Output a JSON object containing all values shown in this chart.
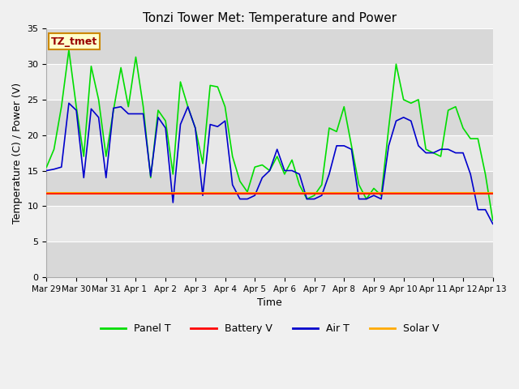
{
  "title": "Tonzi Tower Met: Temperature and Power",
  "xlabel": "Time",
  "ylabel": "Temperature (C) / Power (V)",
  "ylim": [
    0,
    35
  ],
  "yticks": [
    0,
    5,
    10,
    15,
    20,
    25,
    30,
    35
  ],
  "fig_bg_color": "#f0f0f0",
  "plot_bg_color": "#e8e8e8",
  "annotation_text": "TZ_tmet",
  "annotation_bg": "#ffffcc",
  "annotation_border": "#cc8800",
  "annotation_text_color": "#990000",
  "legend_entries": [
    "Panel T",
    "Battery V",
    "Air T",
    "Solar V"
  ],
  "legend_colors": [
    "#00dd00",
    "#ff0000",
    "#0000cc",
    "#ffaa00"
  ],
  "x_tick_labels": [
    "Mar 29",
    "Mar 30",
    "Mar 31",
    "Apr 1",
    "Apr 2",
    "Apr 3",
    "Apr 4",
    "Apr 5",
    "Apr 6",
    "Apr 7",
    "Apr 8",
    "Apr 9",
    "Apr 10",
    "Apr 11",
    "Apr 12",
    "Apr 13"
  ],
  "panel_t": [
    15.5,
    18.0,
    24.0,
    32.0,
    24.0,
    17.0,
    29.7,
    25.0,
    17.0,
    23.5,
    29.5,
    24.0,
    31.0,
    24.0,
    14.0,
    23.5,
    22.0,
    14.5,
    27.5,
    24.0,
    21.0,
    16.0,
    27.0,
    26.8,
    24.0,
    17.0,
    13.5,
    12.0,
    15.5,
    15.8,
    15.0,
    17.0,
    14.5,
    16.5,
    13.0,
    11.0,
    11.5,
    13.0,
    21.0,
    20.5,
    24.0,
    18.5,
    13.0,
    11.0,
    12.5,
    11.5,
    21.0,
    30.0,
    25.0,
    24.5,
    25.0,
    18.0,
    17.5,
    17.0,
    23.5,
    24.0,
    21.0,
    19.5,
    19.5,
    14.5,
    8.0
  ],
  "air_t": [
    15.0,
    15.2,
    15.5,
    24.5,
    23.5,
    14.0,
    23.7,
    22.5,
    14.0,
    23.8,
    24.0,
    23.0,
    23.0,
    23.0,
    14.2,
    22.5,
    21.0,
    10.5,
    21.5,
    24.0,
    21.0,
    11.5,
    21.5,
    21.2,
    22.0,
    13.0,
    11.0,
    11.0,
    11.5,
    14.0,
    15.0,
    18.0,
    15.0,
    15.0,
    14.5,
    11.0,
    11.0,
    11.5,
    14.5,
    18.5,
    18.5,
    18.0,
    11.0,
    11.0,
    11.5,
    11.0,
    18.5,
    22.0,
    22.5,
    22.0,
    18.5,
    17.5,
    17.5,
    18.0,
    18.0,
    17.5,
    17.5,
    14.5,
    9.5,
    9.5,
    7.5
  ],
  "battery_v": [
    11.8,
    11.8,
    11.8,
    11.8,
    11.8,
    11.8,
    11.8,
    11.8,
    11.8,
    11.8,
    11.8,
    11.8,
    11.8,
    11.8,
    11.8,
    11.8,
    11.8,
    11.8,
    11.8,
    11.8,
    11.8,
    11.8,
    11.8,
    11.8,
    11.8,
    11.8,
    11.8,
    11.8,
    11.8,
    11.8,
    11.8,
    11.8,
    11.8,
    11.8,
    11.8,
    11.8,
    11.8,
    11.8,
    11.8,
    11.8,
    11.8,
    11.8,
    11.8,
    11.8,
    11.8,
    11.8,
    11.8,
    11.8,
    11.8,
    11.8,
    11.8,
    11.8,
    11.8,
    11.8,
    11.8,
    11.8,
    11.8,
    11.8,
    11.8,
    11.8,
    11.8
  ],
  "solar_v": [
    11.9,
    11.9,
    11.9,
    11.9,
    11.9,
    11.9,
    11.9,
    11.9,
    11.9,
    11.9,
    11.9,
    11.9,
    11.9,
    11.9,
    11.9,
    11.9,
    11.9,
    11.9,
    11.9,
    11.9,
    11.9,
    11.9,
    11.9,
    11.9,
    11.9,
    11.9,
    11.9,
    11.9,
    11.9,
    11.9,
    11.9,
    11.9,
    11.9,
    11.9,
    11.9,
    11.9,
    11.9,
    11.9,
    11.9,
    11.9,
    11.9,
    11.9,
    11.9,
    11.9,
    11.9,
    11.9,
    11.9,
    11.9,
    11.9,
    11.9,
    11.9,
    11.9,
    11.9,
    11.9,
    11.9,
    11.9,
    11.9,
    11.9,
    11.9,
    11.9,
    11.9
  ],
  "panel_color": "#00dd00",
  "air_color": "#0000cc",
  "battery_color": "#ff2200",
  "solar_color": "#ffaa00",
  "grid_color": "#ffffff",
  "title_fontsize": 11,
  "axis_fontsize": 9,
  "tick_fontsize": 8,
  "band_colors": [
    "#d8d8d8",
    "#e8e8e8"
  ]
}
